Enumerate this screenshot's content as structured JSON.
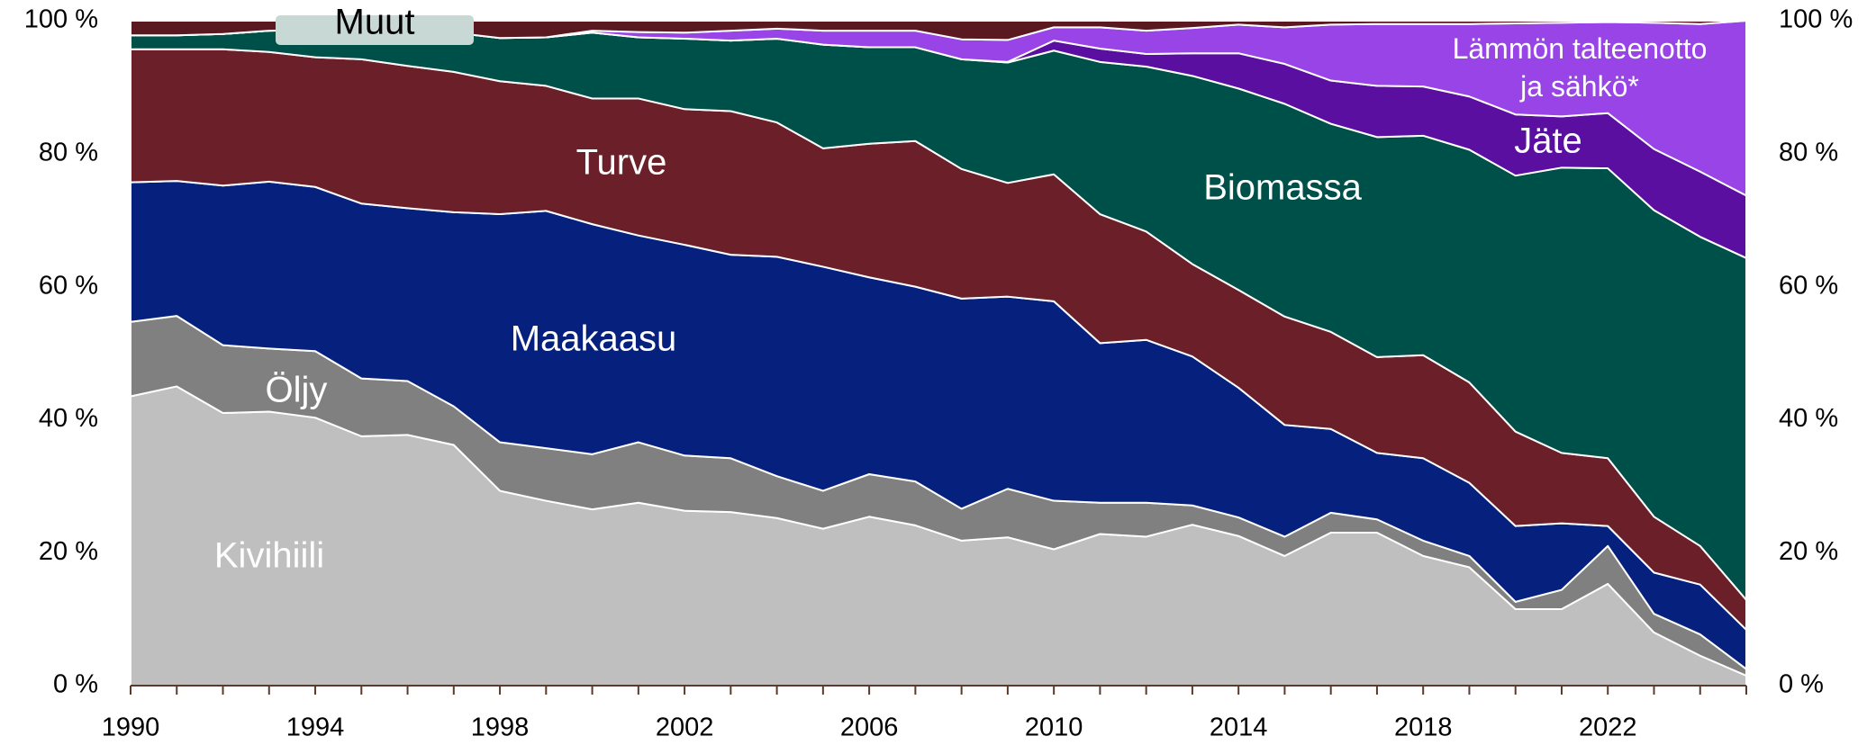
{
  "chart_data": {
    "type": "stacked_area",
    "x": [
      1990,
      1991,
      1992,
      1993,
      1994,
      1995,
      1996,
      1997,
      1998,
      1999,
      2000,
      2001,
      2002,
      2003,
      2004,
      2005,
      2006,
      2007,
      2008,
      2009,
      2010,
      2011,
      2012,
      2013,
      2014,
      2015,
      2016,
      2017,
      2018,
      2019,
      2020,
      2021,
      2022,
      2023,
      2024,
      2025
    ],
    "xlim": [
      1990,
      2025
    ],
    "xticks": [
      1990,
      1994,
      1998,
      2002,
      2006,
      2010,
      2014,
      2018,
      2022
    ],
    "ylim": [
      0,
      100
    ],
    "yticks": [
      {
        "value": 0,
        "label": "0 %"
      },
      {
        "value": 20,
        "label": "20 %"
      },
      {
        "value": 40,
        "label": "40 %"
      },
      {
        "value": 60,
        "label": "60 %"
      },
      {
        "value": 80,
        "label": "80 %"
      },
      {
        "value": 100,
        "label": "100 %"
      }
    ],
    "series": [
      {
        "name": "Kivihiili",
        "color": "#bfbfbf",
        "values": [
          43.5,
          45,
          41,
          41.2,
          40.3,
          37.5,
          37.7,
          36.2,
          29.3,
          27.8,
          26.5,
          27.5,
          26.3,
          26.1,
          25.2,
          23.6,
          25.4,
          24.1,
          21.8,
          22.3,
          20.5,
          22.8,
          22.4,
          24.2,
          22.5,
          19.5,
          23,
          23,
          19.5,
          17.8,
          11.5,
          11.5,
          15.3,
          8,
          4.5,
          1.5
        ]
      },
      {
        "name": "Öljy",
        "color": "#808080",
        "values": [
          11.2,
          10.6,
          10.2,
          9.5,
          10,
          8.7,
          8.1,
          5.8,
          7.3,
          7.9,
          8.3,
          9.1,
          8.3,
          8.1,
          6.3,
          5.7,
          6.4,
          6.6,
          4.8,
          7.3,
          7.3,
          4.7,
          5.1,
          2.9,
          2.8,
          2.9,
          3,
          2,
          2.3,
          1.7,
          1.1,
          2.9,
          5.7,
          2.8,
          3.2,
          1.0
        ]
      },
      {
        "name": "Maakaasu",
        "color": "#06207e",
        "values": [
          21.0,
          20.3,
          24.0,
          25.1,
          24.7,
          26.3,
          26.0,
          29.2,
          34.3,
          35.7,
          34.6,
          31.1,
          31.7,
          30.6,
          33.0,
          33.7,
          29.6,
          29.3,
          31.6,
          28.9,
          30.0,
          24.0,
          24.5,
          22.4,
          19.5,
          16.8,
          12.6,
          10.0,
          12.4,
          11.0,
          11.4,
          10.0,
          3.0,
          6.2,
          7.5,
          5.9
        ]
      },
      {
        "name": "Turve",
        "color": "#6b1f29",
        "values": [
          20.0,
          19.8,
          20.5,
          19.5,
          19.5,
          21.7,
          21.4,
          21.1,
          20.0,
          18.8,
          18.9,
          20.6,
          20.4,
          21.6,
          20.2,
          17.8,
          20.1,
          21.9,
          19.5,
          17.1,
          19.1,
          19.4,
          16.3,
          13.9,
          14.7,
          16.3,
          14.6,
          14.4,
          15.5,
          15.1,
          14.2,
          10.6,
          10.2,
          8.4,
          5.8,
          4.5
        ]
      },
      {
        "name": "Biomassa",
        "color": "#00504a",
        "values": [
          2.1,
          2.1,
          2.3,
          3.2,
          4.1,
          4.2,
          5.1,
          5.9,
          6.5,
          7.3,
          9.9,
          9.2,
          10.6,
          10.6,
          12.6,
          15.6,
          14.5,
          14.1,
          16.5,
          18.1,
          18.6,
          22.9,
          24.8,
          28.3,
          30.3,
          32.0,
          31.3,
          33.1,
          33.0,
          35.0,
          38.5,
          42.9,
          43.6,
          46.1,
          46.5,
          51.4
        ]
      },
      {
        "name": "Jäte",
        "color": "#5a0fa0",
        "values": [
          0,
          0,
          0,
          0,
          0,
          0,
          0,
          0,
          0,
          0,
          0,
          0,
          0,
          0,
          0,
          0,
          0,
          0,
          0,
          0.1,
          1.5,
          2.0,
          1.9,
          3.4,
          5.3,
          6.0,
          6.5,
          7.7,
          7.4,
          8.0,
          9.2,
          7.7,
          8.3,
          9.2,
          9.8,
          9.4
        ]
      },
      {
        "name": "Lämmön talteenotto ja sähkö*",
        "color": "#9944e6",
        "values": [
          0,
          0,
          0,
          0,
          0,
          0,
          0,
          0,
          0,
          0,
          0.3,
          0.8,
          0.9,
          1.5,
          1.5,
          2.1,
          2.5,
          2.5,
          3.0,
          3.3,
          2.0,
          3.2,
          3.5,
          3.8,
          4.3,
          5.5,
          8.4,
          9.3,
          9.4,
          10.9,
          13.7,
          14.1,
          13.7,
          19.0,
          22.2,
          26.3
        ]
      },
      {
        "name": "Muut",
        "color": "#5a1820",
        "values": [
          2.2,
          2.2,
          2.0,
          1.5,
          1.4,
          1.6,
          1.7,
          1.8,
          2.6,
          2.5,
          1.5,
          1.7,
          1.8,
          1.5,
          1.2,
          1.5,
          1.5,
          1.5,
          2.8,
          2.9,
          1.0,
          1.0,
          1.5,
          1.1,
          0.6,
          1.0,
          0.6,
          0.5,
          0.5,
          0.5,
          0.4,
          0.3,
          0.2,
          0.3,
          0.5,
          0.0
        ]
      }
    ]
  }
}
